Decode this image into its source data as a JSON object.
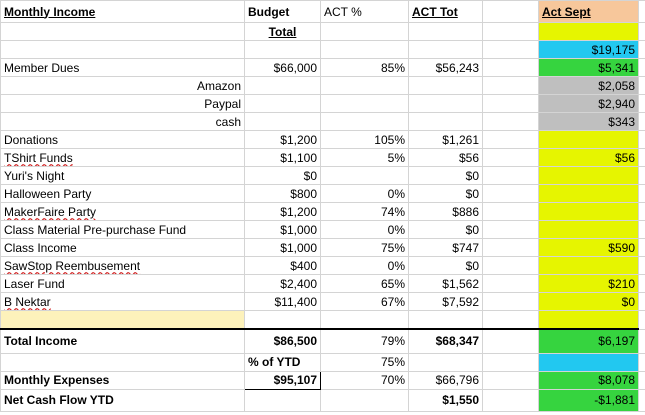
{
  "header": {
    "title": "Monthly Income",
    "budget": "Budget",
    "total": "Total",
    "act_pct": "ACT %",
    "act_tot": "ACT Tot",
    "act_sept": "Act Sept"
  },
  "top_sept": "$19,175",
  "rows": [
    {
      "name": "Member Dues",
      "budget": "$66,000",
      "pct": "85%",
      "tot": "$56,243",
      "sept": "$5,341"
    },
    {
      "name": "Amazon",
      "budget": "",
      "pct": "",
      "tot": "",
      "sept": "$2,058"
    },
    {
      "name": "Paypal",
      "budget": "",
      "pct": "",
      "tot": "",
      "sept": "$2,940"
    },
    {
      "name": "cash",
      "budget": "",
      "pct": "",
      "tot": "",
      "sept": "$343"
    },
    {
      "name": "Donations",
      "budget": "$1,200",
      "pct": "105%",
      "tot": "$1,261",
      "sept": ""
    },
    {
      "name": "TShirt Funds",
      "budget": "$1,100",
      "pct": "5%",
      "tot": "$56",
      "sept": "$56"
    },
    {
      "name": "Yuri's Night",
      "budget": "$0",
      "pct": "",
      "tot": "$0",
      "sept": ""
    },
    {
      "name": "Halloween Party",
      "budget": "$800",
      "pct": "0%",
      "tot": "$0",
      "sept": ""
    },
    {
      "name": "MakerFaire Party",
      "budget": "$1,200",
      "pct": "74%",
      "tot": "$886",
      "sept": ""
    },
    {
      "name": "Class Material Pre-purchase Fund",
      "budget": "$1,000",
      "pct": "0%",
      "tot": "$0",
      "sept": ""
    },
    {
      "name": "Class Income",
      "budget": "$1,000",
      "pct": "75%",
      "tot": "$747",
      "sept": "$590"
    },
    {
      "name": "SawStop Reembusement",
      "budget": "$400",
      "pct": "0%",
      "tot": "$0",
      "sept": ""
    },
    {
      "name": "Laser Fund",
      "budget": "$2,400",
      "pct": "65%",
      "tot": "$1,562",
      "sept": "$210"
    },
    {
      "name": "B Nektar",
      "budget": "$11,400",
      "pct": "67%",
      "tot": "$7,592",
      "sept": "$0"
    }
  ],
  "total_income": {
    "label": "Total Income",
    "budget": "$86,500",
    "pct": "79%",
    "tot": "$68,347",
    "sept": "$6,197"
  },
  "ytd": {
    "label": "% of YTD",
    "pct": "75%"
  },
  "expenses": {
    "label": "Monthly Expenses",
    "budget": "$95,107",
    "pct": "70%",
    "tot": "$66,796",
    "sept": "$8,078"
  },
  "net": {
    "label": "Net Cash Flow YTD",
    "tot": "$1,550",
    "sept": "-$1,881"
  },
  "colors": {
    "yellow": "#e6f500",
    "cyan": "#22c8f0",
    "green": "#36d43f",
    "gray": "#bfbfbf",
    "orange": "#f7c79b"
  }
}
